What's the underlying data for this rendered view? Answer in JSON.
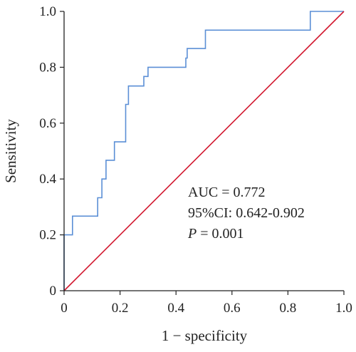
{
  "chart_data": {
    "type": "line",
    "title": "",
    "xlabel": "1 − specificity",
    "ylabel": "Sensitivity",
    "xlim": [
      0,
      1
    ],
    "ylim": [
      0,
      1
    ],
    "x_ticks": [
      "0",
      "0.2",
      "0.4",
      "0.6",
      "0.8",
      "1.0"
    ],
    "y_ticks": [
      "0",
      "0.2",
      "0.4",
      "0.6",
      "0.8",
      "1.0"
    ],
    "grid": false,
    "series": [
      {
        "color": "#5b8fd6",
        "x": [
          0,
          0,
          0.03,
          0.03,
          0.12,
          0.12,
          0.135,
          0.135,
          0.15,
          0.15,
          0.18,
          0.18,
          0.22,
          0.22,
          0.23,
          0.23,
          0.285,
          0.285,
          0.3,
          0.3,
          0.435,
          0.435,
          0.44,
          0.44,
          0.505,
          0.505,
          0.88,
          0.88,
          1.0
        ],
        "y": [
          0,
          0.2,
          0.2,
          0.267,
          0.267,
          0.333,
          0.333,
          0.4,
          0.4,
          0.467,
          0.467,
          0.533,
          0.533,
          0.667,
          0.667,
          0.733,
          0.733,
          0.767,
          0.767,
          0.8,
          0.8,
          0.833,
          0.833,
          0.867,
          0.867,
          0.933,
          0.933,
          1.0,
          1.0
        ]
      },
      {
        "color": "#d2182f",
        "x": [
          0,
          1
        ],
        "y": [
          0,
          1
        ]
      }
    ],
    "annotations": {
      "auc": "AUC = 0.772",
      "ci": "95%CI: 0.642-0.902",
      "p_letter": "P",
      "p_rest": " = 0.001"
    }
  }
}
